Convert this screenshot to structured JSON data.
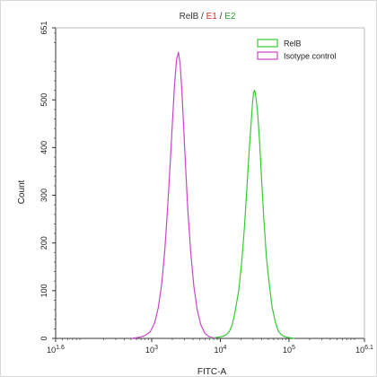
{
  "chart_data": {
    "type": "line",
    "title_parts": [
      {
        "text": "RelB",
        "color": "#333333"
      },
      {
        "text": " / ",
        "color": "#333333"
      },
      {
        "text": "E1",
        "color": "#d62728"
      },
      {
        "text": " / ",
        "color": "#333333"
      },
      {
        "text": "E2",
        "color": "#2ca02c"
      }
    ],
    "xlabel": "FITC-A",
    "ylabel": "Count",
    "x_scale": "log",
    "xlim": [
      39.81,
      1258925
    ],
    "ylim": [
      0,
      651
    ],
    "x_ticks": [
      {
        "value": 39.81,
        "base": "10",
        "exp": "1.6"
      },
      {
        "value": 1000,
        "base": "10",
        "exp": "3"
      },
      {
        "value": 10000,
        "base": "10",
        "exp": "4"
      },
      {
        "value": 100000,
        "base": "10",
        "exp": "5"
      },
      {
        "value": 1258925,
        "base": "10",
        "exp": "6.1"
      }
    ],
    "y_ticks": [
      0,
      100,
      200,
      300,
      400,
      500,
      651
    ],
    "y_tick_labels": [
      "0",
      "100",
      "200",
      "300",
      "400",
      "500",
      "651"
    ],
    "legend_position": "top-right",
    "grid": false,
    "series": [
      {
        "name": "RelB",
        "color": "#33cc33",
        "x": [
          7000,
          9000,
          10500,
          12000,
          13500,
          15000,
          16500,
          18500,
          20500,
          22500,
          24500,
          26500,
          28200,
          29500,
          30500,
          31500,
          32500,
          33500,
          35000,
          37500,
          40000,
          43000,
          47000,
          52000,
          57000,
          63000,
          70000,
          80000,
          95000,
          120000
        ],
        "y": [
          0,
          2,
          4,
          7,
          14,
          30,
          58,
          100,
          160,
          235,
          320,
          400,
          455,
          495,
          515,
          520,
          512,
          498,
          470,
          410,
          330,
          250,
          170,
          110,
          65,
          35,
          15,
          6,
          2,
          0
        ]
      },
      {
        "name": "Isotype control",
        "color": "#cc44cc",
        "x": [
          500,
          650,
          800,
          950,
          1100,
          1250,
          1400,
          1550,
          1700,
          1850,
          2000,
          2150,
          2300,
          2450,
          2600,
          2750,
          2900,
          3100,
          3350,
          3700,
          4100,
          4600,
          5200,
          6000,
          7000,
          8500
        ],
        "y": [
          0,
          2,
          6,
          14,
          32,
          65,
          115,
          185,
          270,
          360,
          450,
          530,
          585,
          600,
          575,
          520,
          450,
          365,
          270,
          180,
          110,
          60,
          28,
          10,
          3,
          0
        ]
      }
    ]
  }
}
